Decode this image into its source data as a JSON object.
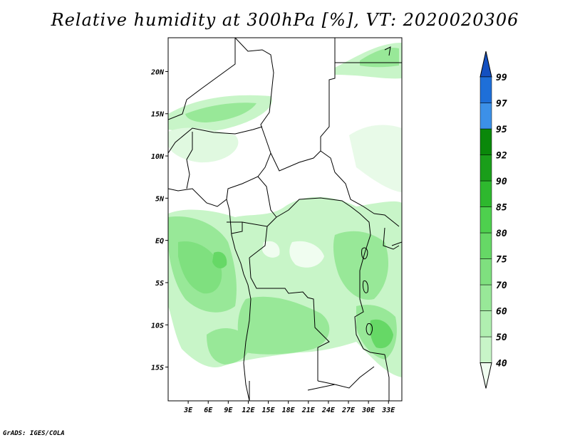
{
  "title": "Relative humidity at 300hPa [%], VT: 2020020306",
  "credit": "GrADS: IGES/COLA",
  "map": {
    "lon_range": [
      0,
      35
    ],
    "lat_range": [
      -19,
      24
    ],
    "lat_ticks": [
      {
        "value": 20,
        "label": "20N"
      },
      {
        "value": 15,
        "label": "15N"
      },
      {
        "value": 10,
        "label": "10N"
      },
      {
        "value": 5,
        "label": "5N"
      },
      {
        "value": 0,
        "label": "EQ"
      },
      {
        "value": -5,
        "label": "5S"
      },
      {
        "value": -10,
        "label": "10S"
      },
      {
        "value": -15,
        "label": "15S"
      }
    ],
    "lon_ticks": [
      {
        "value": 3,
        "label": "3E"
      },
      {
        "value": 6,
        "label": "6E"
      },
      {
        "value": 9,
        "label": "9E"
      },
      {
        "value": 12,
        "label": "12E"
      },
      {
        "value": 15,
        "label": "15E"
      },
      {
        "value": 18,
        "label": "18E"
      },
      {
        "value": 21,
        "label": "21E"
      },
      {
        "value": 24,
        "label": "24E"
      },
      {
        "value": 27,
        "label": "27E"
      },
      {
        "value": 30,
        "label": "30E"
      },
      {
        "value": 33,
        "label": "33E"
      }
    ]
  },
  "colorbar": {
    "levels": [
      "40",
      "50",
      "60",
      "70",
      "75",
      "80",
      "85",
      "90",
      "92",
      "95",
      "97",
      "99"
    ],
    "colors": [
      "#f0fdf0",
      "#c8f5c8",
      "#b0efb0",
      "#98e898",
      "#7fe07f",
      "#66d866",
      "#4ed04e",
      "#2eb82e",
      "#1a9e1a",
      "#0a880a",
      "#3c90e8",
      "#1e6fd8",
      "#1450c0"
    ]
  }
}
